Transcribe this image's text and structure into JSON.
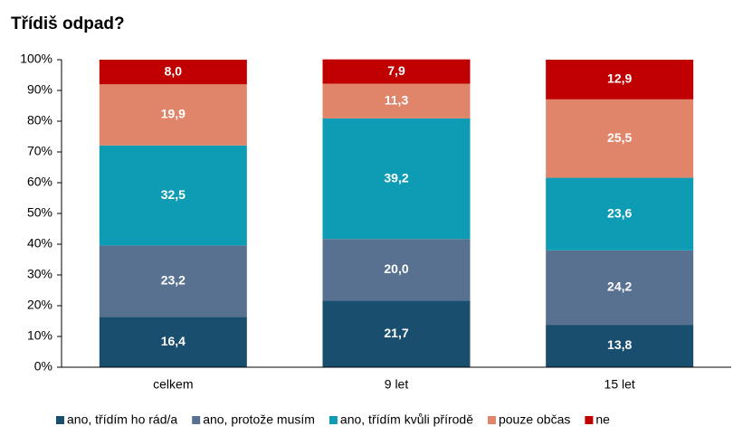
{
  "chart_data": {
    "type": "stacked_bar",
    "title": "Třídiš odpad?",
    "categories": [
      "celkem",
      "9 let",
      "15 let"
    ],
    "series": [
      {
        "name": "ano, třídím ho rád/a",
        "color": "#1a4e6e",
        "values": [
          16.4,
          21.7,
          13.8
        ],
        "value_labels": [
          "16,4",
          "21,7",
          "13,8"
        ]
      },
      {
        "name": "ano, protože musím",
        "color": "#587190",
        "values": [
          23.2,
          20.0,
          24.2
        ],
        "value_labels": [
          "23,2",
          "20,0",
          "24,2"
        ]
      },
      {
        "name": "ano, třídím kvůli přírodě",
        "color": "#0e9cb5",
        "values": [
          32.5,
          39.2,
          23.6
        ],
        "value_labels": [
          "32,5",
          "39,2",
          "23,6"
        ]
      },
      {
        "name": "pouze občas",
        "color": "#e0856a",
        "values": [
          19.9,
          11.3,
          25.5
        ],
        "value_labels": [
          "19,9",
          "11,3",
          "25,5"
        ]
      },
      {
        "name": "ne",
        "color": "#c00000",
        "values": [
          8.0,
          7.9,
          12.9
        ],
        "value_labels": [
          "8,0",
          "7,9",
          "12,9"
        ]
      }
    ],
    "ylim": [
      0,
      100
    ],
    "yticks": [
      {
        "value": 0,
        "label": "0%"
      },
      {
        "value": 10,
        "label": "10%"
      },
      {
        "value": 20,
        "label": "20%"
      },
      {
        "value": 30,
        "label": "30%"
      },
      {
        "value": 40,
        "label": "40%"
      },
      {
        "value": 50,
        "label": "50%"
      },
      {
        "value": 60,
        "label": "60%"
      },
      {
        "value": 70,
        "label": "70%"
      },
      {
        "value": 80,
        "label": "80%"
      },
      {
        "value": 90,
        "label": "90%"
      },
      {
        "value": 100,
        "label": "100%"
      }
    ],
    "grid": false,
    "legend": "bottom"
  }
}
